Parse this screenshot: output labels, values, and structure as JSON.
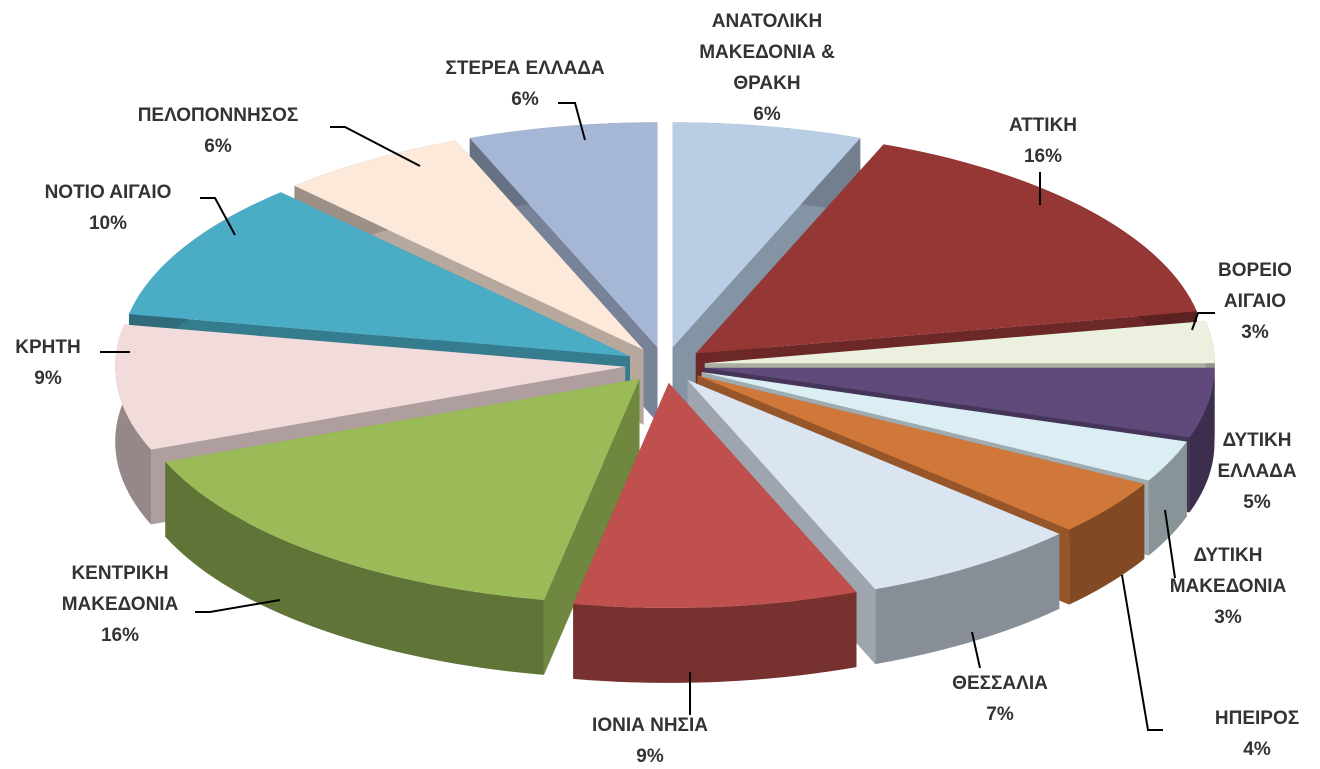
{
  "chart_data": {
    "type": "pie3d",
    "categories": [
      "ΑΝΑΤΟΛΙΚΗ ΜΑΚΕΔΟΝΙΑ & ΘΡΑΚΗ",
      "ΑΤΤΙΚΗ",
      "ΒΟΡΕΙΟ ΑΙΓΑΙΟ",
      "ΔΥΤΙΚΗ ΕΛΛΑΔΑ",
      "ΔΥΤΙΚΗ ΜΑΚΕΔΟΝΙΑ",
      "ΗΠΕΙΡΟΣ",
      "ΘΕΣΣΑΛΙΑ",
      "ΙΟΝΙΑ ΝΗΣΙΑ",
      "ΚΕΝΤΡΙΚΗ ΜΑΚΕΔΟΝΙΑ",
      "ΚΡΗΤΗ",
      "ΝΟΤΙΟ ΑΙΓΑΙΟ",
      "ΠΕΛΟΠΟΝΝΗΣΟΣ",
      "ΣΤΕΡΕΑ ΕΛΛΑΔΑ"
    ],
    "values": [
      6,
      16,
      3,
      5,
      3,
      4,
      7,
      9,
      16,
      9,
      10,
      6,
      6
    ],
    "value_labels": [
      "6%",
      "16%",
      "3%",
      "5%",
      "3%",
      "4%",
      "7%",
      "9%",
      "16%",
      "9%",
      "10%",
      "6%",
      "6%"
    ],
    "colors": [
      "#b9cde5",
      "#953735",
      "#ebf1de",
      "#604a7b",
      "#dbeef4",
      "#d0783a",
      "#dbe5f1",
      "#c0504d",
      "#9bbb59",
      "#f2dcdb",
      "#4bacc6",
      "#fde9d9",
      "#a6b6d5"
    ]
  }
}
